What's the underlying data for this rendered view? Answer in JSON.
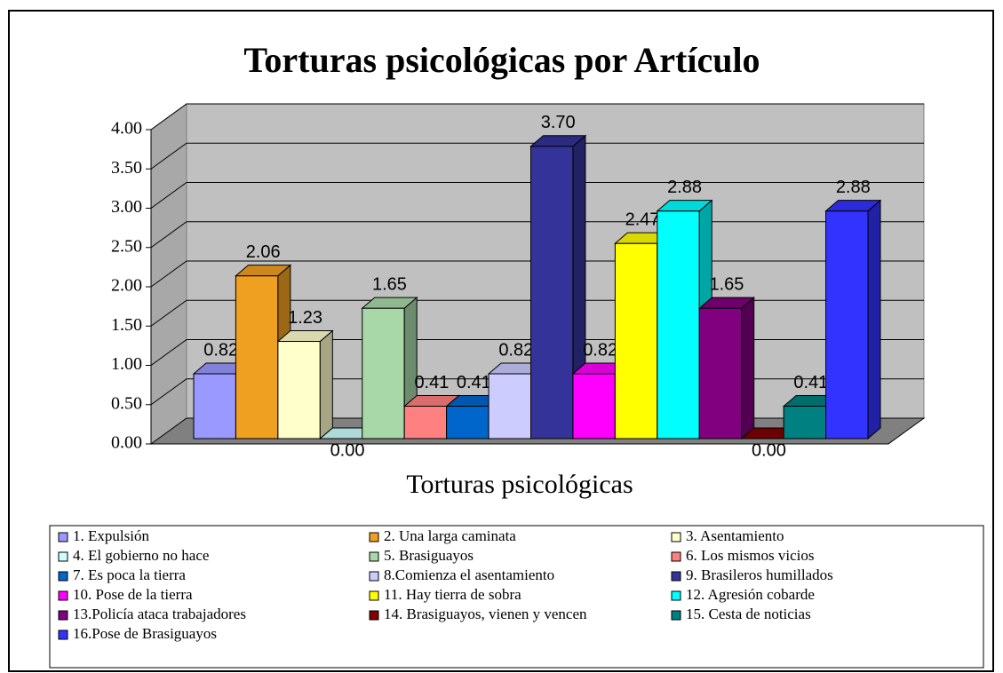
{
  "chart_data": {
    "type": "bar3d",
    "title": "Torturas psicológicas por Artículo",
    "x_label": "Torturas psicológicas",
    "ylim": [
      0,
      4
    ],
    "yticks": [
      {
        "value": 0,
        "label": "0.00"
      },
      {
        "value": 0.5,
        "label": "0.50"
      },
      {
        "value": 1,
        "label": "1.00"
      },
      {
        "value": 1.5,
        "label": "1.50"
      },
      {
        "value": 2,
        "label": "2.00"
      },
      {
        "value": 2.5,
        "label": "2.50"
      },
      {
        "value": 3,
        "label": "3.00"
      },
      {
        "value": 3.5,
        "label": "3.50"
      },
      {
        "value": 4,
        "label": "4.00"
      }
    ],
    "grid": true,
    "series": [
      {
        "name": "1. Expulsión",
        "color": "#9999ff",
        "values": [
          0.82
        ],
        "value_labels": [
          "0.82"
        ]
      },
      {
        "name": "2. Una larga caminata",
        "color": "#f0a020",
        "values": [
          2.06
        ],
        "value_labels": [
          "2.06"
        ]
      },
      {
        "name": "3. Asentamiento",
        "color": "#ffffcc",
        "values": [
          1.23
        ],
        "value_labels": [
          "1.23"
        ]
      },
      {
        "name": "4. El gobierno no hace",
        "color": "#ccffff",
        "values": [
          0
        ],
        "value_labels": [
          "0.00"
        ]
      },
      {
        "name": "5. Brasiguayos",
        "color": "#a8d8a8",
        "values": [
          1.65
        ],
        "value_labels": [
          "1.65"
        ]
      },
      {
        "name": "6. Los mismos vicios",
        "color": "#ff8080",
        "values": [
          0.41
        ],
        "value_labels": [
          "0.41"
        ]
      },
      {
        "name": "7. Es poca la tierra",
        "color": "#0066cc",
        "values": [
          0.41
        ],
        "value_labels": [
          "0.41"
        ]
      },
      {
        "name": "8.Comienza el asentamiento",
        "color": "#ccccff",
        "values": [
          0.82
        ],
        "value_labels": [
          "0.82"
        ]
      },
      {
        "name": "9. Brasileros humillados",
        "color": "#333399",
        "values": [
          3.7
        ],
        "value_labels": [
          "3.70"
        ]
      },
      {
        "name": "10. Pose de la tierra",
        "color": "#ff00ff",
        "values": [
          0.82
        ],
        "value_labels": [
          "0.82"
        ]
      },
      {
        "name": "11. Hay tierra de sobra",
        "color": "#ffff00",
        "values": [
          2.47
        ],
        "value_labels": [
          "2.47"
        ]
      },
      {
        "name": "12. Agresión cobarde",
        "color": "#00ffff",
        "values": [
          2.88
        ],
        "value_labels": [
          "2.88"
        ]
      },
      {
        "name": "13.Policía ataca trabajadores",
        "color": "#800080",
        "values": [
          1.65
        ],
        "value_labels": [
          "1.65"
        ]
      },
      {
        "name": "14. Brasiguayos, vienen y vencen",
        "color": "#800000",
        "values": [
          0
        ],
        "value_labels": [
          "0.00"
        ]
      },
      {
        "name": "15. Cesta de noticias",
        "color": "#008080",
        "values": [
          0.41
        ],
        "value_labels": [
          "0.41"
        ]
      },
      {
        "name": "16.Pose de Brasiguayos",
        "color": "#3333ff",
        "values": [
          2.88
        ],
        "value_labels": [
          "2.88"
        ]
      }
    ]
  }
}
